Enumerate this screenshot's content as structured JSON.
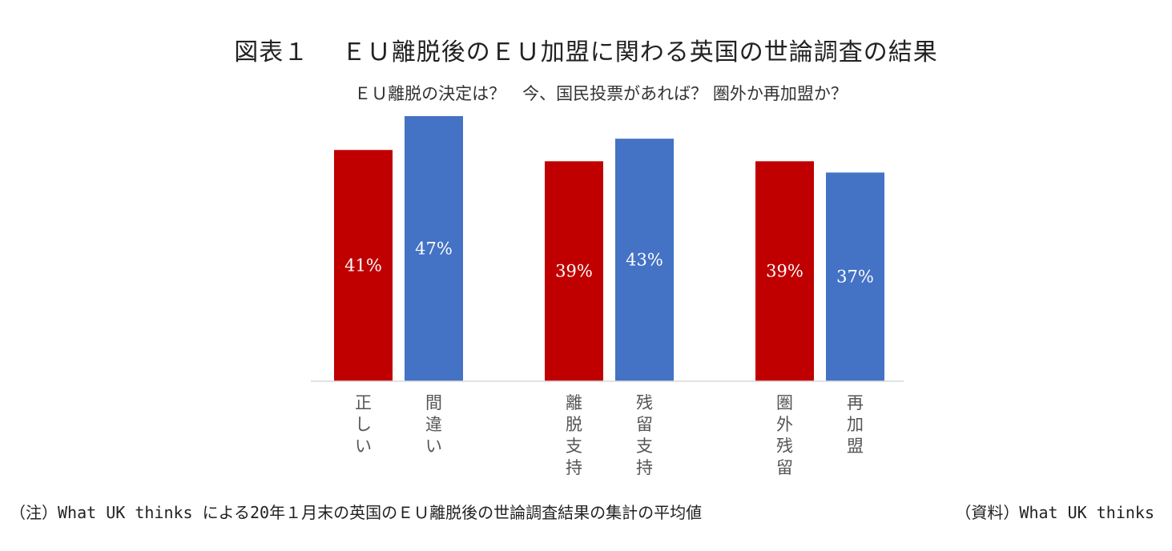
{
  "title": "図表１　 ＥＵ離脱後のＥＵ加盟に関わる英国の世論調査の結果",
  "subtitle": "ＥＵ離脱の決定は？　今、国民投票があれば？ 圏外か再加盟か？",
  "note": "（注）What UK thinks による20年１月末の英国のＥＵ離脱後の世論調査結果の集計の平均値",
  "source": "（資料）What UK thinks",
  "chart_data": {
    "type": "bar",
    "title": "図表１　 ＥＵ離脱後のＥＵ加盟に関わる英国の世論調査の結果",
    "subtitle": "ＥＵ離脱の決定は？　今、国民投票があれば？ 圏外か再加盟か？",
    "categories": [
      "正しい",
      "間違い",
      "離脱支持",
      "残留支持",
      "圏外残留",
      "再加盟"
    ],
    "values": [
      41,
      47,
      39,
      43,
      39,
      37
    ],
    "data_labels": [
      "41%",
      "47%",
      "39%",
      "43%",
      "39%",
      "37%"
    ],
    "groups": [
      [
        0,
        1
      ],
      [
        2,
        3
      ],
      [
        4,
        5
      ]
    ],
    "colors": [
      "#c00000",
      "#4472c4",
      "#c00000",
      "#4472c4",
      "#c00000",
      "#4472c4"
    ],
    "ylim": [
      0,
      47
    ],
    "grid": false,
    "legend": "none"
  }
}
